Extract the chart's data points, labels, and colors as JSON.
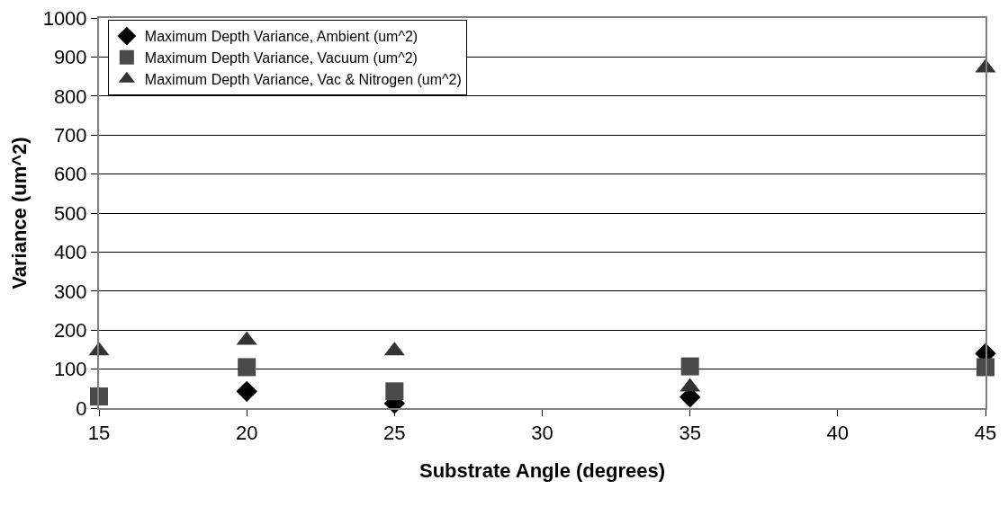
{
  "chart_data": {
    "type": "scatter",
    "xlabel": "Substrate Angle (degrees)",
    "ylabel": "Variance (um^2)",
    "x": [
      15,
      20,
      25,
      35,
      45
    ],
    "series": [
      {
        "name": "Maximum Depth Variance, Ambient (um^2)",
        "color": "#000000",
        "marker": "diamond",
        "values": [
          null,
          43,
          12,
          28,
          140
        ]
      },
      {
        "name": "Maximum Depth Variance, Vacuum (um^2)",
        "color": "#4a4a4a",
        "marker": "square",
        "values": [
          30,
          105,
          43,
          107,
          105
        ]
      },
      {
        "name": "Maximum Depth Variance, Vac & Nitrogen (um^2)",
        "color": "#333333",
        "marker": "triangle",
        "values": [
          147,
          174,
          147,
          54,
          872
        ]
      }
    ],
    "xlim": [
      15,
      45
    ],
    "xticks": [
      15,
      20,
      25,
      30,
      35,
      40,
      45
    ],
    "ylim": [
      0,
      1000
    ],
    "yticks": [
      0,
      100,
      200,
      300,
      400,
      500,
      600,
      700,
      800,
      900,
      1000
    ],
    "grid": "y",
    "legend": "top left"
  }
}
